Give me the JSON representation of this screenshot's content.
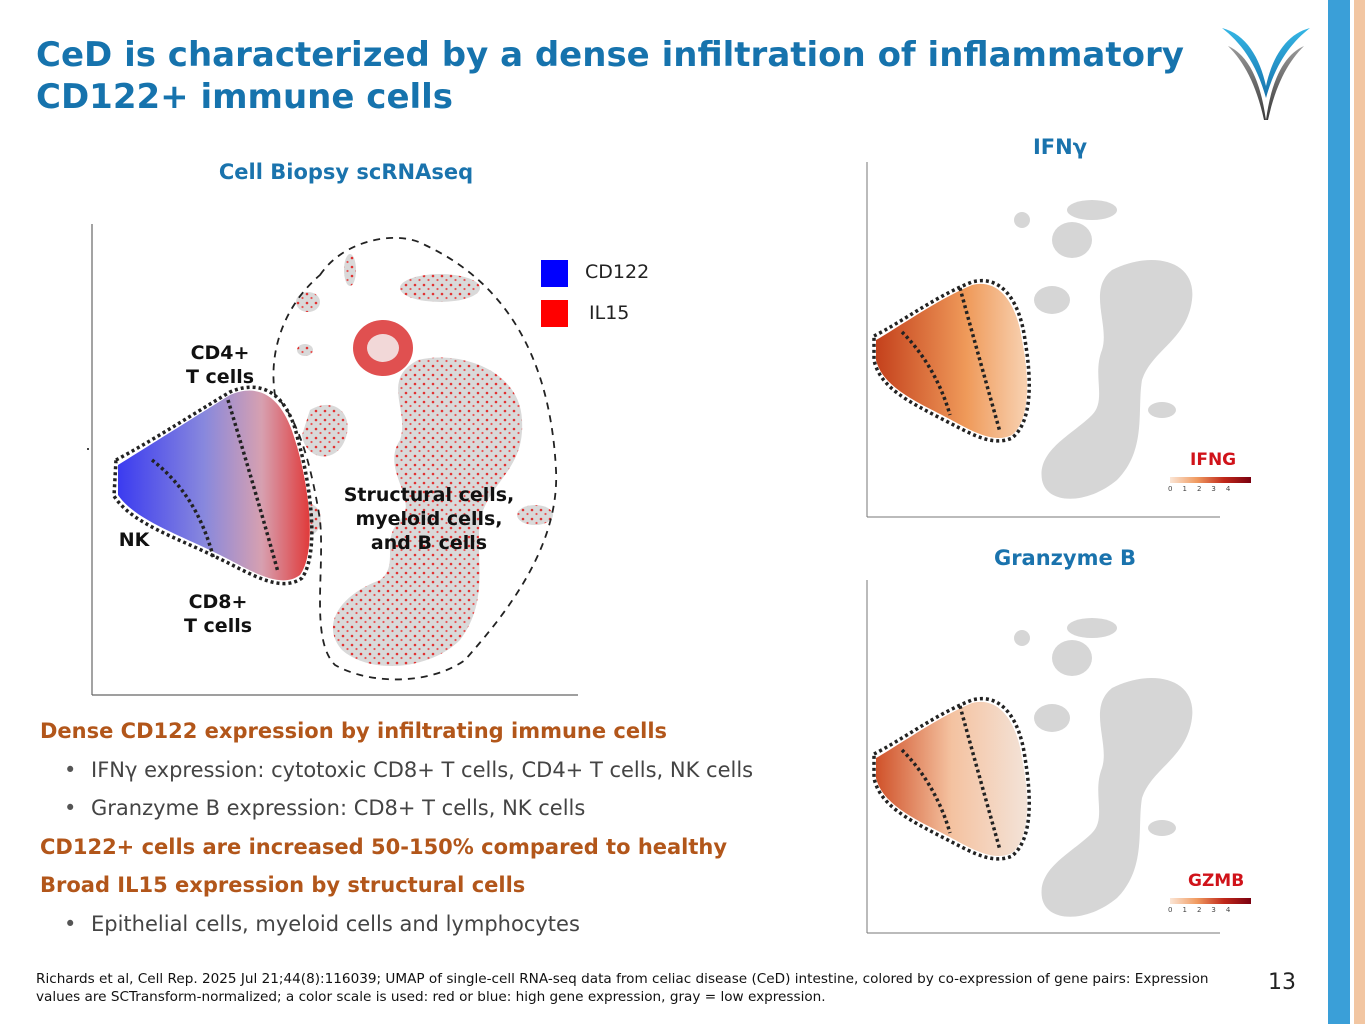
{
  "slide": {
    "title": "CeD is characterized by a dense infiltration of inflammatory CD122+ immune cells",
    "page_number": "13",
    "colors": {
      "title": "#1673ad",
      "accent_orange": "#b2561a",
      "scale_red": "#d0131a",
      "stripe_blue": "#3a9fd8",
      "stripe_peach": "#f2c6a2"
    }
  },
  "main_panel": {
    "heading": "Cell Biopsy scRNAseq",
    "legend": [
      {
        "label": "CD122",
        "color": "#0000ff"
      },
      {
        "label": "IL15",
        "color": "#ff0000"
      }
    ],
    "labels": {
      "cd4": "CD4+\nT cells",
      "nk": "NK",
      "cd8": "CD8+\nT cells",
      "structural": "Structural cells,\nmyeloid cells,\nand B cells"
    }
  },
  "ifng_panel": {
    "heading": "IFNγ",
    "scale_label": "IFNG",
    "ticks": [
      "0",
      "1",
      "2",
      "3",
      "4"
    ]
  },
  "gzmb_panel": {
    "heading": "Granzyme B",
    "scale_label": "GZMB",
    "ticks": [
      "0",
      "1",
      "2",
      "3",
      "4"
    ]
  },
  "bullets": [
    {
      "level": 1,
      "text": "Dense CD122 expression by infiltrating immune cells"
    },
    {
      "level": 2,
      "text": "IFNγ expression: cytotoxic CD8+ T cells, CD4+ T cells, NK cells"
    },
    {
      "level": 2,
      "text": "Granzyme B expression: CD8+ T cells, NK cells"
    },
    {
      "level": 1,
      "text": "CD122+ cells are increased 50-150% compared to healthy"
    },
    {
      "level": 1,
      "text": "Broad IL15 expression by structural cells"
    },
    {
      "level": 2,
      "text": "Epithelial cells, myeloid cells and lymphocytes"
    }
  ],
  "footnote": "Richards et al, Cell Rep. 2025 Jul 21;44(8):116039; UMAP of single-cell RNA-seq data from celiac disease (CeD) intestine, colored by co-expression of gene pairs: Expression values are SCTransform-normalized; a color scale is used: red or blue: high gene expression, gray = low expression."
}
